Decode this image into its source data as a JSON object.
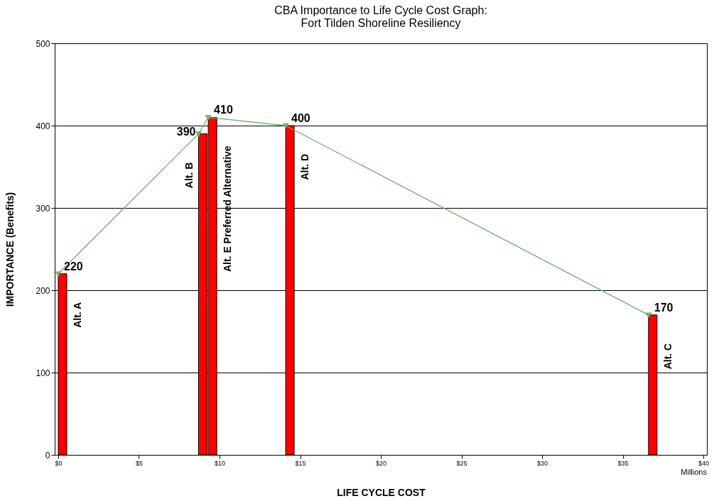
{
  "chart_data": {
    "type": "bar",
    "title": "CBA Importance to Life Cycle Cost Graph:\nFort Tilden Shoreline Resiliency",
    "xlabel": "LIFE CYCLE COST",
    "ylabel": "IMPORTANCE (Benefits)",
    "series": [
      {
        "name": "Alt. A",
        "color": "#ff0000",
        "x": [
          0
        ],
        "values": [
          220
        ]
      },
      {
        "name": "Alt. B",
        "color": "#ff0000",
        "x": [
          8.7
        ],
        "values": [
          390
        ]
      },
      {
        "name": "Alt. E Preferred Alternative",
        "color": "#ff0000",
        "x": [
          9.3
        ],
        "values": [
          410
        ]
      },
      {
        "name": "Alt. D",
        "color": "#ff0000",
        "x": [
          14.1
        ],
        "values": [
          400
        ]
      },
      {
        "name": "Alt. C",
        "color": "#ff0000",
        "x": [
          36.6
        ],
        "values": [
          170
        ]
      },
      {
        "type": "line",
        "color": "#66b266",
        "x": [
          0,
          8.7,
          9.3,
          14.1,
          36.6
        ],
        "values": [
          220,
          390,
          410,
          400,
          170
        ],
        "value_labels": [
          "220",
          "390",
          "410",
          "400",
          "170"
        ],
        "marker": "triangle"
      }
    ],
    "xlim": [
      0,
      40
    ],
    "ylim": [
      0,
      500
    ],
    "xticks": [
      {
        "value": 0,
        "label": "$0"
      },
      {
        "value": 5,
        "label": "$5"
      },
      {
        "value": 10,
        "label": "$10"
      },
      {
        "value": 15,
        "label": "$15"
      },
      {
        "value": 20,
        "label": "$20"
      },
      {
        "value": 25,
        "label": "$25"
      },
      {
        "value": 30,
        "label": "$30"
      },
      {
        "value": 35,
        "label": "$35"
      },
      {
        "value": 40,
        "label": "$40"
      }
    ],
    "yticks": [
      0,
      100,
      200,
      300,
      400,
      500
    ],
    "grid": "y",
    "annotations": [
      "Millions"
    ]
  }
}
